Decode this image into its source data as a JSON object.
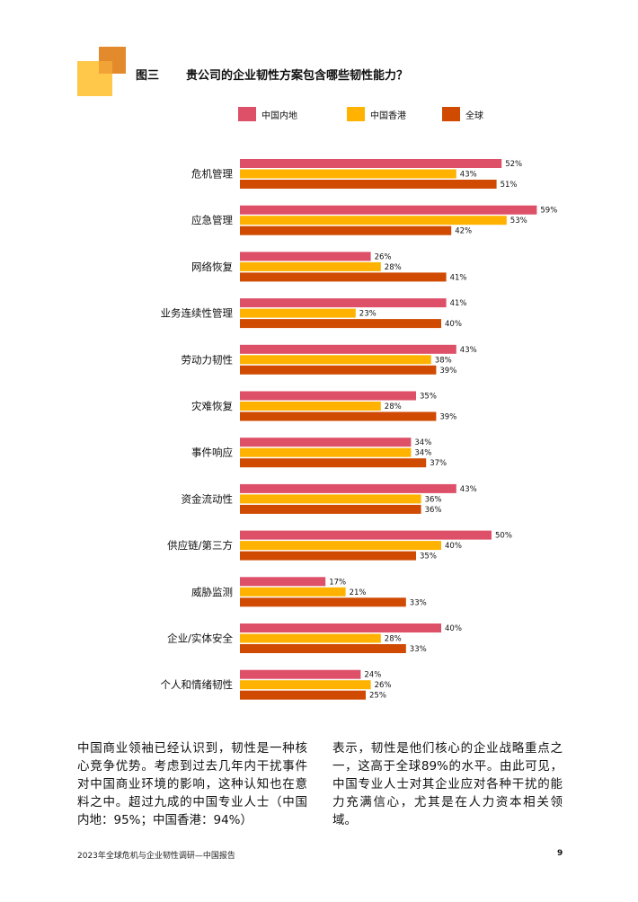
{
  "figure": {
    "label": "图三",
    "title": "贵公司的企业韧性方案包含哪些韧性能力？"
  },
  "colors": {
    "mainland": "#DD5068",
    "hongkong": "#FFB300",
    "global": "#D04A02",
    "logo_light": "#FFC84A",
    "logo_dark": "#E38B2C"
  },
  "chart_data": {
    "type": "bar",
    "orientation": "horizontal",
    "title": "贵公司的企业韧性方案包含哪些韧性能力？",
    "xlabel": "",
    "ylabel": "",
    "value_unit": "%",
    "xlim": [
      0,
      100
    ],
    "grid": false,
    "legend_position": "top",
    "categories": [
      "危机管理",
      "应急管理",
      "网络恢复",
      "业务连续性管理",
      "劳动力韧性",
      "灾难恢复",
      "事件响应",
      "资金流动性",
      "供应链/第三方",
      "威胁监测",
      "企业/实体安全",
      "个人和情绪韧性"
    ],
    "series": [
      {
        "name": "中国内地",
        "values": [
          52,
          59,
          26,
          41,
          43,
          35,
          34,
          43,
          50,
          17,
          40,
          24
        ]
      },
      {
        "name": "中国香港",
        "values": [
          43,
          53,
          28,
          23,
          38,
          28,
          34,
          36,
          40,
          21,
          28,
          26
        ]
      },
      {
        "name": "全球",
        "values": [
          51,
          42,
          41,
          40,
          39,
          39,
          37,
          36,
          35,
          33,
          33,
          25
        ]
      }
    ]
  },
  "body": {
    "col1": "中国商业领袖已经认识到，韧性是一种核心竞争优势。考虑到过去几年内干扰事件对中国商业环境的影响，这种认知也在意料之中。超过九成的中国专业人士（中国内地：95%；中国香港：94%）",
    "col2": "表示，韧性是他们核心的企业战略重点之一，这高于全球89%的水平。由此可见，中国专业人士对其企业应对各种干扰的能力充满信心，尤其是在人力资本相关领域。"
  },
  "footer": {
    "report": "2023年全球危机与企业韧性调研—中国报告",
    "page": "9"
  }
}
